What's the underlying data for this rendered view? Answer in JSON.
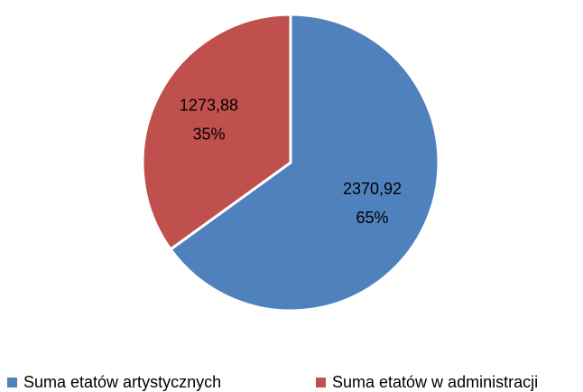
{
  "chart_data": {
    "type": "pie",
    "categories": [
      "Suma etatów artystycznych",
      "Suma etatów w administracji"
    ],
    "values": [
      2370.92,
      1273.88
    ],
    "value_labels": [
      "2370,92",
      "1273,88"
    ],
    "percent_labels": [
      "65%",
      "35%"
    ],
    "colors": [
      "#4f81bd",
      "#c0504d"
    ],
    "legend": "bottom"
  }
}
